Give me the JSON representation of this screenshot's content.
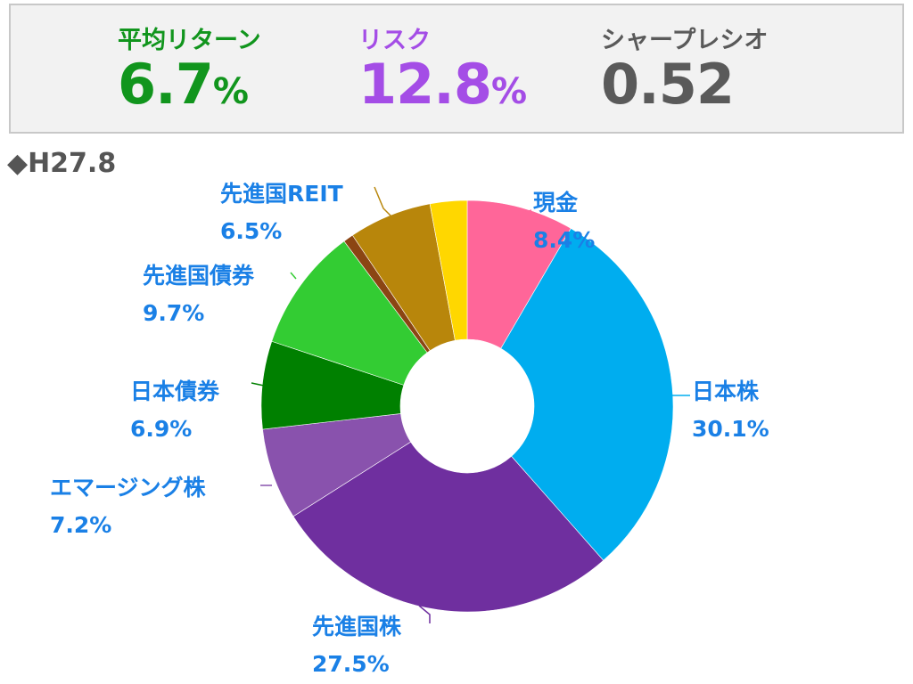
{
  "stats": {
    "return": {
      "label": "平均リターン",
      "value": "6.7",
      "unit": "%",
      "color": "#11951d"
    },
    "risk": {
      "label": "リスク",
      "value": "12.8",
      "unit": "%",
      "color": "#a44de6"
    },
    "sharpe": {
      "label": "シャープレシオ",
      "value": "0.52",
      "unit": "",
      "color": "#5a5a5a"
    }
  },
  "date_label": "◆H27.8",
  "chart_data": {
    "type": "pie",
    "donut": true,
    "start_angle_deg": 0,
    "direction": "clockwise",
    "label_color": "#1a80e6",
    "slices": [
      {
        "name": "現金",
        "value": 8.4,
        "label": "8.4%",
        "color": "#ff6699"
      },
      {
        "name": "日本株",
        "value": 30.1,
        "label": "30.1%",
        "color": "#00adef"
      },
      {
        "name": "先進国株",
        "value": 27.5,
        "label": "27.5%",
        "color": "#6f2f9f"
      },
      {
        "name": "エマージング株",
        "value": 7.2,
        "label": "7.2%",
        "color": "#8952ad"
      },
      {
        "name": "日本債券",
        "value": 6.9,
        "label": "6.9%",
        "color": "#008000"
      },
      {
        "name": "先進国債券",
        "value": 9.7,
        "label": "9.7%",
        "color": "#33cc33"
      },
      {
        "name": "",
        "value": 0.8,
        "label": "",
        "color": "#8b4513"
      },
      {
        "name": "先進国REIT",
        "value": 6.5,
        "label": "6.5%",
        "color": "#b8860b"
      },
      {
        "name": "",
        "value": 2.9,
        "label": "",
        "color": "#ffd700"
      }
    ]
  }
}
